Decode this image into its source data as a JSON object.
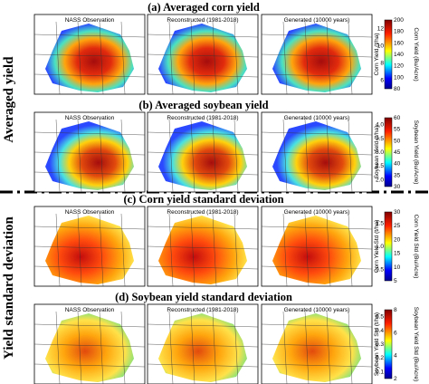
{
  "row_labels": [
    "Averaged yield",
    "Yield standard deviation"
  ],
  "panels": [
    {
      "title": "(a) Averaged corn yield",
      "maps": [
        "NASS Observation",
        "Reconstructed (1981-2018)",
        "Generated (10000 years)"
      ],
      "colorbar": {
        "left_label": "Corn Yield (t/ha)",
        "left_ticks": [
          "6",
          "8",
          "10",
          "12"
        ],
        "right_label": "Corn Yield (Bu/Acre)",
        "right_ticks": [
          "80",
          "100",
          "120",
          "140",
          "160",
          "180",
          "200"
        ]
      }
    },
    {
      "title": "(b) Averaged soybean yield",
      "maps": [
        "NASS Observation",
        "Reconstructed (1981-2018)",
        "Generated (10000 years)"
      ],
      "colorbar": {
        "left_label": "Soybean Yield (t/ha)",
        "left_ticks": [
          "2.0",
          "2.5",
          "3.0",
          "3.5",
          "4.0"
        ],
        "right_label": "Soybean Yield (Bu/Acre)",
        "right_ticks": [
          "30",
          "35",
          "40",
          "45",
          "50",
          "55",
          "60"
        ]
      }
    },
    {
      "title": "(c) Corn yield standard deviation",
      "maps": [
        "NASS Observation",
        "Reconstructed (1981-2018)",
        "Generated (10000 years)"
      ],
      "colorbar": {
        "left_label": "Corn Yield Std (t/ha)",
        "left_ticks": [
          "0.5",
          "1.0",
          "1.5"
        ],
        "right_label": "Corn Yield Std (Bu/Acre)",
        "right_ticks": [
          "5",
          "10",
          "15",
          "20",
          "25",
          "30"
        ]
      }
    },
    {
      "title": "(d) Soybean yield standard deviation",
      "maps": [
        "NASS Observation",
        "Reconstructed (1981-2018)",
        "Generated (10000 years)"
      ],
      "colorbar": {
        "left_label": "Soybean Yield Std (t/ha)",
        "left_ticks": [
          "0.1",
          "0.2",
          "0.3",
          "0.4",
          "0.5"
        ],
        "right_label": "Soybean Yield Std (Bu/Acre)",
        "right_ticks": [
          "2",
          "4",
          "6",
          "8"
        ]
      }
    }
  ]
}
